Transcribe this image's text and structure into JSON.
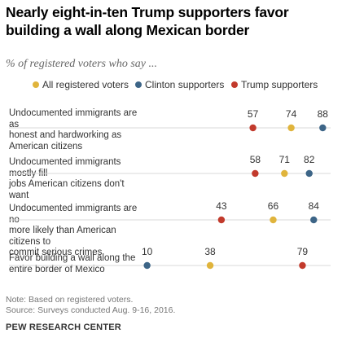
{
  "chart_data": {
    "type": "scatter",
    "title": "Nearly eight-in-ten Trump supporters favor building a wall along Mexican border",
    "subtitle": "% of registered voters who say ...",
    "legend_position": "top",
    "series": [
      {
        "name": "All registered voters",
        "color": "#e0b43c",
        "values": [
          74,
          71,
          66,
          38
        ]
      },
      {
        "name": "Clinton supporters",
        "color": "#3d6587",
        "values": [
          88,
          82,
          84,
          10
        ]
      },
      {
        "name": "Trump supporters",
        "color": "#c23a2c",
        "values": [
          57,
          58,
          43,
          79
        ]
      }
    ],
    "categories": [
      "Undocumented immigrants are as honest and hardworking as American citizens",
      "Undocumented immigrants mostly fill jobs American citizens don't want",
      "Undocumented immigrants are no more likely than American citizens to commit serious crimes",
      "Favor building a wall along the entire border of Mexico"
    ],
    "category_lines": [
      [
        "Undocumented immigrants are as",
        "honest and hardworking as",
        "American citizens"
      ],
      [
        "Undocumented immigrants mostly fill",
        "jobs American citizens don't want"
      ],
      [
        "Undocumented immigrants are no",
        "more likely than American citizens to",
        "commit serious crimes"
      ],
      [
        "Favor building a wall along the",
        "entire border of Mexico"
      ]
    ],
    "xlim": [
      0,
      100
    ],
    "grid": false
  },
  "footer": {
    "note": "Note: Based on registered voters.",
    "source": "Source: Surveys conducted Aug. 9-16, 2016.",
    "org": "PEW RESEARCH CENTER"
  }
}
